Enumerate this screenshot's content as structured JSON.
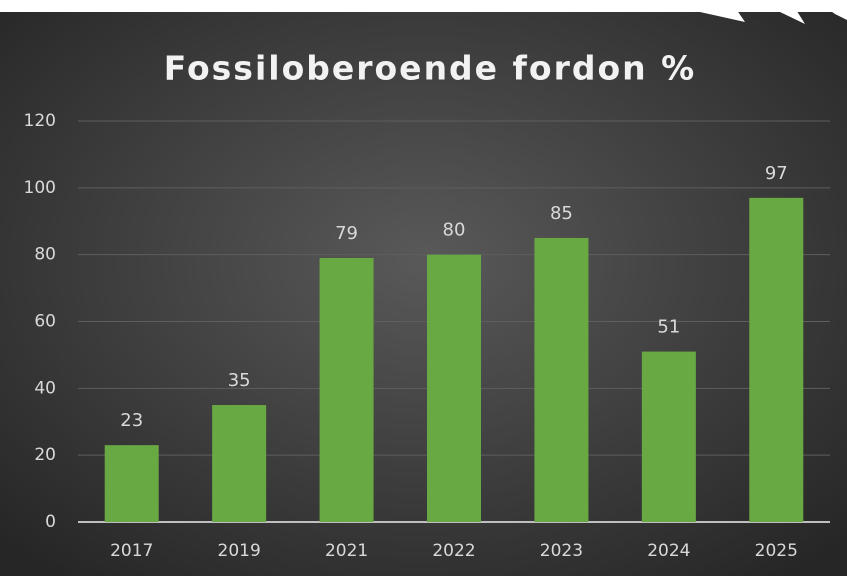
{
  "chart_data": {
    "type": "bar",
    "title": "Fossiloberoende fordon %",
    "categories": [
      "2017",
      "2019",
      "2021",
      "2022",
      "2023",
      "2024",
      "2025"
    ],
    "values": [
      23,
      35,
      79,
      80,
      85,
      51,
      97
    ],
    "color": "#69a944",
    "ylim": [
      0,
      120
    ],
    "yticks": [
      0,
      20,
      40,
      60,
      80,
      100,
      120
    ],
    "grid": true
  }
}
